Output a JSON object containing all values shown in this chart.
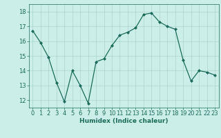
{
  "x": [
    0,
    1,
    2,
    3,
    4,
    5,
    6,
    7,
    8,
    9,
    10,
    11,
    12,
    13,
    14,
    15,
    16,
    17,
    18,
    19,
    20,
    21,
    22,
    23
  ],
  "y": [
    16.7,
    15.9,
    14.9,
    13.2,
    11.9,
    14.0,
    13.0,
    11.8,
    14.6,
    14.8,
    15.7,
    16.4,
    16.6,
    16.9,
    17.8,
    17.9,
    17.3,
    17.0,
    16.8,
    14.7,
    13.3,
    14.0,
    13.9,
    13.7
  ],
  "line_color": "#1a6b5a",
  "marker": "D",
  "marker_size": 2.0,
  "bg_color": "#cceee8",
  "grid_color": "#aad4cc",
  "xlabel": "Humidex (Indice chaleur)",
  "xlim": [
    -0.5,
    23.5
  ],
  "ylim": [
    11.5,
    18.5
  ],
  "yticks": [
    12,
    13,
    14,
    15,
    16,
    17,
    18
  ],
  "xticks": [
    0,
    1,
    2,
    3,
    4,
    5,
    6,
    7,
    8,
    9,
    10,
    11,
    12,
    13,
    14,
    15,
    16,
    17,
    18,
    19,
    20,
    21,
    22,
    23
  ],
  "xlabel_fontsize": 6.5,
  "tick_fontsize": 6.0,
  "tick_color": "#1a6b5a",
  "label_color": "#1a6b5a",
  "linewidth": 0.9
}
